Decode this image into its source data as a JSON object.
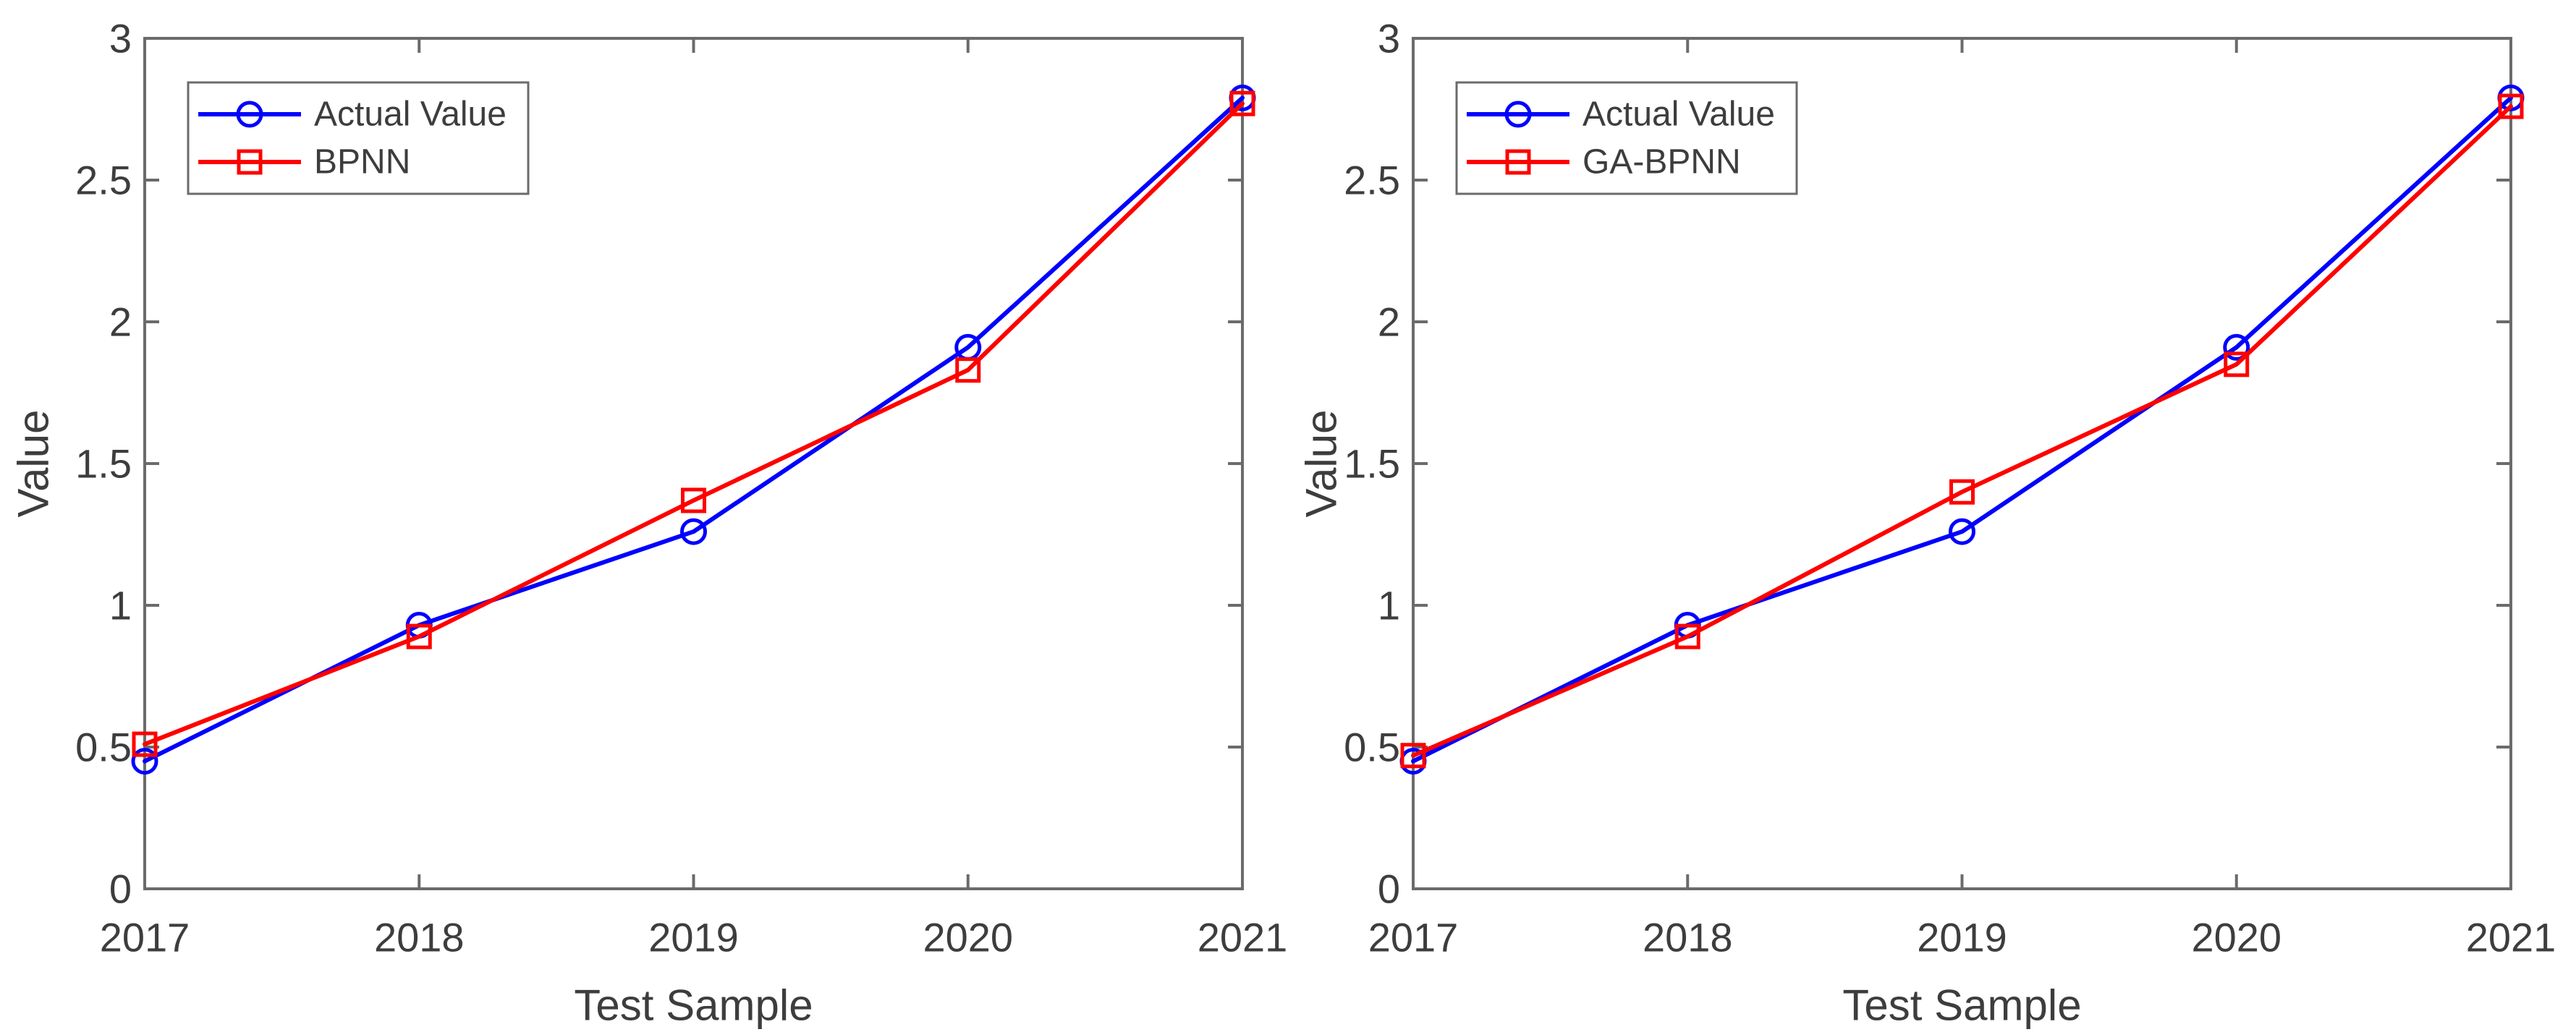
{
  "page": {
    "background": "#ffffff"
  },
  "colors": {
    "axis_frame": "#6b6b6b",
    "text": "#3d3d3d",
    "actual_line": "#0000ff",
    "prediction_line": "#ff0000",
    "legend_border": "#6b6b6b",
    "legend_background": "#ffffff"
  },
  "chart_data": [
    {
      "type": "line",
      "title": "",
      "xlabel": "Test Sample",
      "ylabel": "Value",
      "categories": [
        "2017",
        "2018",
        "2019",
        "2020",
        "2021"
      ],
      "x_values": [
        2017,
        2018,
        2019,
        2020,
        2021
      ],
      "ylim": [
        0,
        3
      ],
      "ytick_values": [
        0,
        0.5,
        1,
        1.5,
        2,
        2.5,
        3
      ],
      "ytick_labels": [
        "0",
        "0.5",
        "1",
        "1.5",
        "2",
        "2.5",
        "3"
      ],
      "grid": false,
      "legend": {
        "position": "top-left",
        "entries": [
          "Actual Value",
          "BPNN"
        ]
      },
      "series": [
        {
          "name": "Actual Value",
          "color": "#0000ff",
          "marker": "circle",
          "values": [
            0.45,
            0.93,
            1.26,
            1.91,
            2.79
          ]
        },
        {
          "name": "BPNN",
          "color": "#ff0000",
          "marker": "square",
          "values": [
            0.51,
            0.89,
            1.37,
            1.83,
            2.77
          ]
        }
      ]
    },
    {
      "type": "line",
      "title": "",
      "xlabel": "Test Sample",
      "ylabel": "Value",
      "categories": [
        "2017",
        "2018",
        "2019",
        "2020",
        "2021"
      ],
      "x_values": [
        2017,
        2018,
        2019,
        2020,
        2021
      ],
      "ylim": [
        0,
        3
      ],
      "ytick_values": [
        0,
        0.5,
        1,
        1.5,
        2,
        2.5,
        3
      ],
      "ytick_labels": [
        "0",
        "0.5",
        "1",
        "1.5",
        "2",
        "2.5",
        "3"
      ],
      "grid": false,
      "legend": {
        "position": "top-left",
        "entries": [
          "Actual Value",
          "GA-BPNN"
        ]
      },
      "series": [
        {
          "name": "Actual Value",
          "color": "#0000ff",
          "marker": "circle",
          "values": [
            0.45,
            0.93,
            1.26,
            1.91,
            2.79
          ]
        },
        {
          "name": "GA-BPNN",
          "color": "#ff0000",
          "marker": "square",
          "values": [
            0.47,
            0.89,
            1.4,
            1.85,
            2.76
          ]
        }
      ]
    }
  ]
}
